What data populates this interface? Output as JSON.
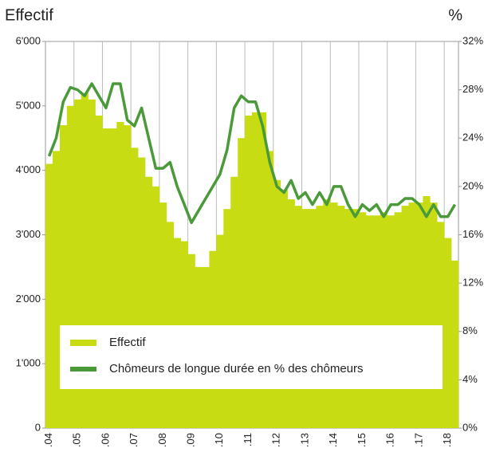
{
  "chart_data": {
    "type": "combo",
    "ylabel": "Effectif",
    "y2label": "%",
    "categories": [
      ".04",
      null,
      null,
      null,
      ".05",
      null,
      null,
      null,
      ".06",
      null,
      null,
      null,
      ".07",
      null,
      null,
      null,
      ".08",
      null,
      null,
      null,
      ".09",
      null,
      null,
      null,
      ".10",
      null,
      null,
      null,
      ".11",
      null,
      null,
      null,
      ".12",
      null,
      null,
      null,
      ".13",
      null,
      null,
      null,
      ".14",
      null,
      null,
      null,
      ".15",
      null,
      null,
      null,
      ".16",
      null,
      null,
      null,
      ".17",
      null,
      null,
      null,
      ".18",
      null
    ],
    "series": [
      {
        "name": "Effectif",
        "type": "bar",
        "color": "#c8dc14",
        "values": [
          4100,
          4300,
          4700,
          5000,
          5100,
          5200,
          5100,
          4850,
          4650,
          4650,
          4750,
          4700,
          4350,
          4200,
          3900,
          3750,
          3500,
          3200,
          2950,
          2900,
          2700,
          2500,
          2500,
          2750,
          3000,
          3400,
          3900,
          4500,
          4850,
          4900,
          4900,
          4300,
          3850,
          3700,
          3550,
          3450,
          3400,
          3400,
          3450,
          3550,
          3500,
          3450,
          3400,
          3400,
          3350,
          3300,
          3300,
          3350,
          3300,
          3350,
          3450,
          3500,
          3500,
          3600,
          3500,
          3200,
          2950,
          2600
        ]
      },
      {
        "name": "Chômeurs de longue durée en % des chômeurs",
        "type": "line",
        "axis": "y2",
        "color": "#4a9a3a",
        "values": [
          22.5,
          24,
          27,
          28.2,
          28,
          27.5,
          28.5,
          27.5,
          26.5,
          28.5,
          28.5,
          25.5,
          25,
          26.5,
          24,
          21.5,
          21.5,
          22,
          20,
          18.5,
          17,
          18,
          19,
          20,
          21,
          23,
          26.5,
          27.5,
          27,
          27,
          25,
          22,
          20,
          19.5,
          20.5,
          19,
          19.5,
          18.5,
          19.5,
          18.5,
          20,
          20,
          18.5,
          17.5,
          18.5,
          18,
          18.5,
          17.5,
          18.5,
          18.5,
          19,
          19,
          18.5,
          17.5,
          18.5,
          17.5,
          17.5,
          18.5
        ]
      }
    ],
    "ylim": [
      0,
      6000
    ],
    "yticks": [
      {
        "value": 0,
        "label": "0"
      },
      {
        "value": 1000,
        "label": "1'000"
      },
      {
        "value": 2000,
        "label": "2'000"
      },
      {
        "value": 3000,
        "label": "3'000"
      },
      {
        "value": 4000,
        "label": "4'000"
      },
      {
        "value": 5000,
        "label": "5'000"
      },
      {
        "value": 6000,
        "label": "6'000"
      }
    ],
    "y2lim": [
      0,
      32
    ],
    "y2ticks": [
      {
        "value": 0,
        "label": "0%"
      },
      {
        "value": 4,
        "label": "4%"
      },
      {
        "value": 8,
        "label": "8%"
      },
      {
        "value": 12,
        "label": "12%"
      },
      {
        "value": 16,
        "label": "16%"
      },
      {
        "value": 20,
        "label": "20%"
      },
      {
        "value": 24,
        "label": "24%"
      },
      {
        "value": 28,
        "label": "28%"
      },
      {
        "value": 32,
        "label": "32%"
      }
    ],
    "grid": true
  }
}
